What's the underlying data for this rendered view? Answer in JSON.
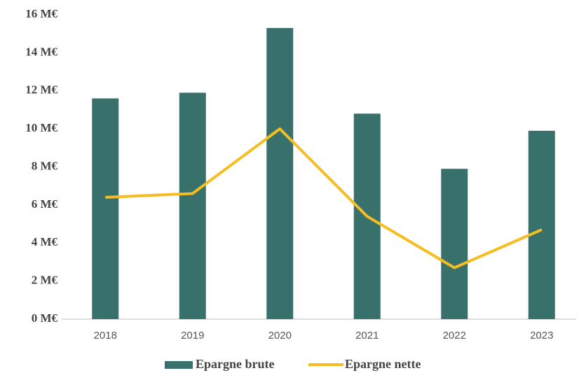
{
  "chart_data": {
    "type": "bar",
    "categories": [
      "2018",
      "2019",
      "2020",
      "2021",
      "2022",
      "2023"
    ],
    "series": [
      {
        "name": "Epargne brute",
        "type": "bar",
        "color": "#38706b",
        "values": [
          11.6,
          11.9,
          15.3,
          10.8,
          7.9,
          9.9
        ]
      },
      {
        "name": "Epargne nette",
        "type": "line",
        "color": "#f5bd1f",
        "values": [
          6.4,
          6.6,
          10.0,
          5.4,
          2.7,
          4.7
        ]
      }
    ],
    "ylim": [
      0,
      16
    ],
    "yticks": [
      {
        "value": 0,
        "label": "0 M€"
      },
      {
        "value": 2,
        "label": "2 M€"
      },
      {
        "value": 4,
        "label": "4 M€"
      },
      {
        "value": 6,
        "label": "6 M€"
      },
      {
        "value": 8,
        "label": "8 M€"
      },
      {
        "value": 10,
        "label": "10 M€"
      },
      {
        "value": 12,
        "label": "12 M€"
      },
      {
        "value": 14,
        "label": "14 M€"
      },
      {
        "value": 16,
        "label": "16 M€"
      }
    ],
    "grid": false,
    "legend": "bottom"
  }
}
